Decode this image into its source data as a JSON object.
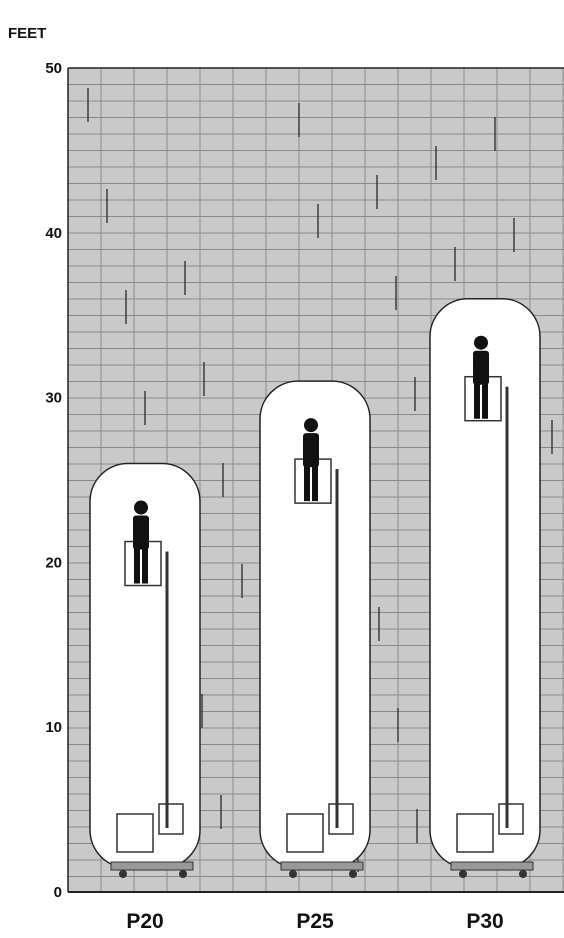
{
  "chart_data": {
    "type": "bar",
    "title": "",
    "ylabel": "FEET",
    "xlabel": "",
    "ylim": [
      0,
      50
    ],
    "yticks": [
      0,
      10,
      20,
      30,
      40,
      50
    ],
    "categories": [
      "P20",
      "P25",
      "P30"
    ],
    "values": [
      26,
      31,
      36
    ],
    "grid": true,
    "legend": "none",
    "colors": {
      "background": "#c9c9c9",
      "grid": "#8a8a8a",
      "bar_fill": "#ffffff",
      "bar_stroke": "#222222",
      "figure": "#111111",
      "lift": "#333333"
    }
  }
}
